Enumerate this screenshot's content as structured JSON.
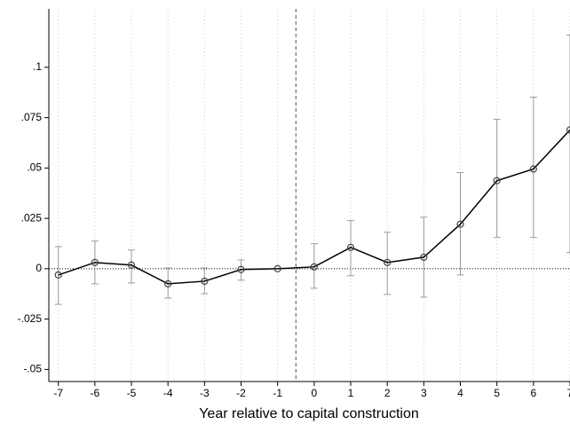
{
  "chart_data": {
    "type": "line",
    "x_label": "Year relative to capital construction",
    "x": [
      -7,
      -6,
      -5,
      -4,
      -3,
      -2,
      -1,
      0,
      1,
      2,
      3,
      4,
      5,
      6,
      7
    ],
    "series": [
      {
        "color": "#000000",
        "values": [
          -0.0031,
          0.0031,
          0.0018,
          -0.0075,
          -0.0062,
          -0.0004,
          0,
          0.0009,
          0.0106,
          0.0031,
          0.0057,
          0.0221,
          0.0437,
          0.0495,
          0.0689
        ],
        "ci_low": [
          -0.0177,
          -0.0075,
          -0.0071,
          -0.0146,
          -0.0124,
          -0.0057,
          0,
          -0.0097,
          -0.0035,
          -0.0128,
          -0.0141,
          -0.0031,
          0.0155,
          0.0155,
          0.008
        ],
        "ci_high": [
          0.011,
          0.0137,
          0.0093,
          0.0004,
          0.0004,
          0.0044,
          0,
          0.0124,
          0.0239,
          0.0181,
          0.0256,
          0.0477,
          0.0742,
          0.0852,
          0.116
        ]
      }
    ],
    "xlim": [
      -7.26,
      7
    ],
    "ylim": [
      -0.056,
      0.129
    ],
    "xticks": [
      -7,
      -6,
      -5,
      -4,
      -3,
      -2,
      -1,
      0,
      1,
      2,
      3,
      4,
      5,
      6,
      7
    ],
    "yticks": [
      {
        "value": -0.05,
        "label": "-.05"
      },
      {
        "value": -0.025,
        "label": "-.025"
      },
      0,
      {
        "value": 0.025,
        "label": ".025"
      },
      {
        "value": 0.05,
        "label": ".05"
      },
      {
        "value": 0.075,
        "label": ".075"
      },
      {
        "value": 0.1,
        "label": ".1"
      }
    ],
    "vline": -0.5,
    "hline": 0,
    "grid": true
  }
}
